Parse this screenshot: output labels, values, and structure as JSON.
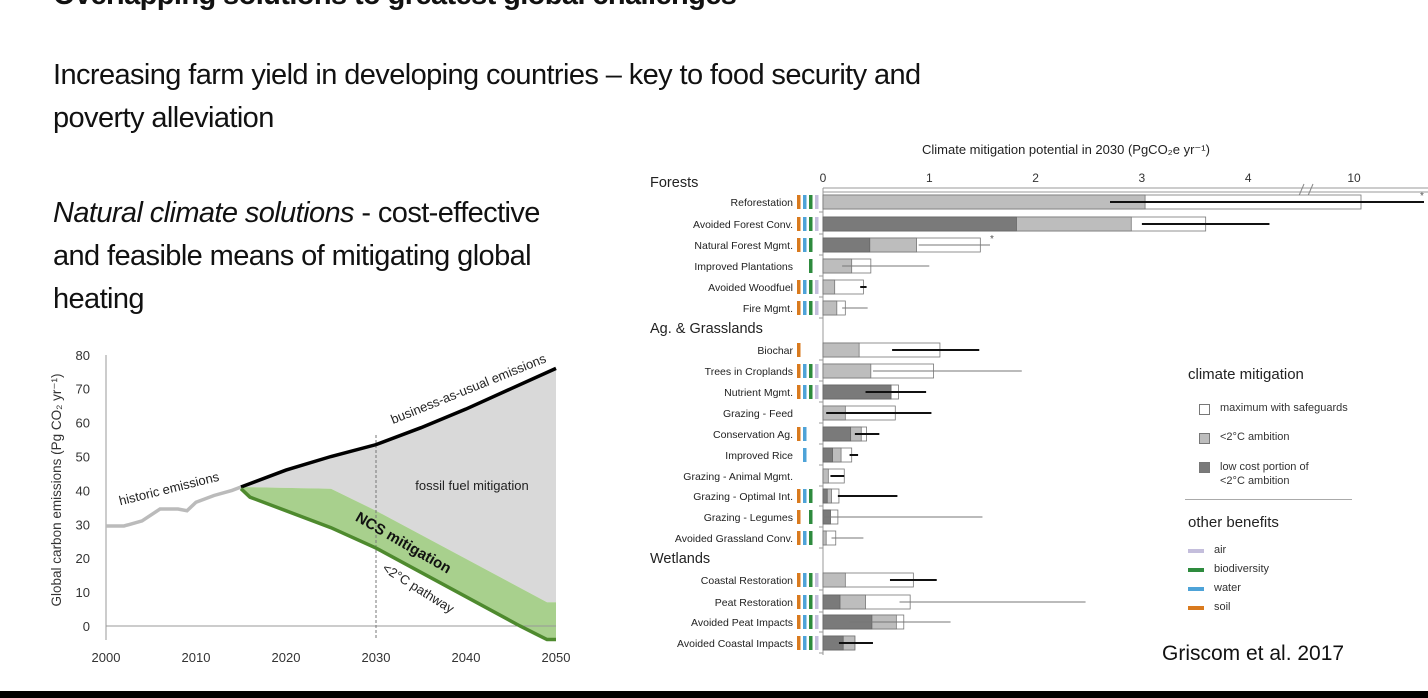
{
  "slide": {
    "title": "Overlapping solutions to greatest global challenges",
    "intro": "Increasing farm yield in developing countries – key to food security and poverty alleviation",
    "ncs_italic": "Natural climate solutions",
    "ncs_rest": " - cost-effective and feasible means of mitigating global heating",
    "citation": "Griscom et al. 2017"
  },
  "legend": {
    "mitigation_title": "climate mitigation",
    "mitigation_items": [
      {
        "label": "maximum with safeguards",
        "color": "#ffffff"
      },
      {
        "label": "<2°C ambition",
        "color": "#bdbdbd"
      },
      {
        "label": "low cost portion of <2°C ambition",
        "color": "#7a7a7a"
      }
    ],
    "benefits_title": "other benefits",
    "benefit_items": [
      {
        "label": "air",
        "color": "#c4bedc"
      },
      {
        "label": "biodiversity",
        "color": "#2e8b3e"
      },
      {
        "label": "water",
        "color": "#4ea3d8"
      },
      {
        "label": "soil",
        "color": "#d97a1e"
      }
    ]
  },
  "chart_data": [
    {
      "type": "area",
      "xlabel": "",
      "ylabel": "Global carbon emissions (Pg CO₂ yr⁻¹)",
      "xlim": [
        2000,
        2050
      ],
      "ylim": [
        -5,
        80
      ],
      "x_ticks": [
        2000,
        2010,
        2020,
        2030,
        2040,
        2050
      ],
      "y_ticks": [
        0,
        10,
        20,
        30,
        40,
        50,
        60,
        70,
        80
      ],
      "series": [
        {
          "name": "historic emissions",
          "color": "#bbbbbb",
          "points": [
            [
              2000,
              29.5
            ],
            [
              2002,
              29.5
            ],
            [
              2004,
              31
            ],
            [
              2006,
              34.5
            ],
            [
              2008,
              34.5
            ],
            [
              2009,
              34
            ],
            [
              2010,
              36.5
            ],
            [
              2012,
              38.5
            ],
            [
              2014,
              40
            ],
            [
              2015,
              41
            ]
          ]
        },
        {
          "name": "business-as-usual emissions",
          "color": "#000000",
          "points": [
            [
              2015,
              41
            ],
            [
              2020,
              46
            ],
            [
              2025,
              50
            ],
            [
              2030,
              53.5
            ],
            [
              2035,
              58.5
            ],
            [
              2040,
              64
            ],
            [
              2045,
              70
            ],
            [
              2050,
              76
            ]
          ]
        },
        {
          "name": "NCS mitigation",
          "color": "#a8d08d",
          "upper": [
            [
              2015,
              41
            ],
            [
              2025,
              40.5
            ],
            [
              2030,
              34
            ],
            [
              2049,
              7
            ],
            [
              2050,
              7
            ]
          ]
        },
        {
          "name": "<2°C pathway",
          "color": "#4e8a2e",
          "points": [
            [
              2015,
              40.5
            ],
            [
              2016,
              38
            ],
            [
              2025,
              29
            ],
            [
              2030,
              23
            ],
            [
              2046,
              0
            ],
            [
              2049,
              -4
            ],
            [
              2050,
              -4
            ]
          ]
        }
      ],
      "area_labels": {
        "fossil": "fossil fuel mitigation",
        "ncs": "NCS mitigation",
        "pathway": "<2°C pathway",
        "historic": "historic emissions",
        "bau": "business-as-usual emissions"
      },
      "fossil_area_color": "#d9d9d9",
      "reference_line_x": 2030
    },
    {
      "type": "bar",
      "title": "Climate mitigation potential in 2030 (PgCO₂e yr⁻¹)",
      "x_ticks": [
        0,
        1,
        2,
        3,
        4,
        10
      ],
      "axis_break": [
        4.5,
        9.5
      ],
      "colors": {
        "max": "#ffffff",
        "ambition": "#bdbdbd",
        "lowcost": "#7a7a7a",
        "soil": "#d97a1e",
        "water": "#4ea3d8",
        "biodiversity": "#2e8b3e",
        "air": "#c4bedc"
      },
      "groups": [
        "Forests",
        "Ag. & Grasslands",
        "Wetlands"
      ],
      "rows": [
        {
          "group": 0,
          "label": "Reforestation",
          "lowcost": 0,
          "ambition": 3.03,
          "max": 10.1,
          "err": [
            2.7,
            11
          ],
          "err_bold": true,
          "asterisk": true,
          "benefits": [
            "soil",
            "water",
            "biodiversity",
            "air"
          ]
        },
        {
          "group": 0,
          "label": "Avoided Forest Conv.",
          "lowcost": 1.82,
          "ambition": 2.9,
          "max": 3.6,
          "err": [
            3.0,
            4.2
          ],
          "err_bold": true,
          "benefits": [
            "soil",
            "water",
            "biodiversity",
            "air"
          ]
        },
        {
          "group": 0,
          "label": "Natural Forest Mgmt.",
          "lowcost": 0.44,
          "ambition": 0.88,
          "max": 1.48,
          "err": [
            0.9,
            4.8
          ],
          "err_bold": false,
          "asterisk": true,
          "benefits": [
            "soil",
            "water",
            "biodiversity"
          ]
        },
        {
          "group": 0,
          "label": "Improved Plantations",
          "lowcost": 0,
          "ambition": 0.27,
          "max": 0.45,
          "err": [
            0.18,
            1.0
          ],
          "err_bold": false,
          "benefits": [
            "biodiversity"
          ]
        },
        {
          "group": 0,
          "label": "Avoided Woodfuel",
          "lowcost": 0,
          "ambition": 0.11,
          "max": 0.38,
          "err": [
            0.35,
            0.41
          ],
          "err_bold": true,
          "benefits": [
            "soil",
            "water",
            "biodiversity",
            "air"
          ]
        },
        {
          "group": 0,
          "label": "Fire Mgmt.",
          "lowcost": 0,
          "ambition": 0.13,
          "max": 0.21,
          "err": [
            0.18,
            0.42
          ],
          "err_bold": false,
          "benefits": [
            "soil",
            "water",
            "biodiversity",
            "air"
          ]
        },
        {
          "group": 1,
          "label": "Biochar",
          "lowcost": 0,
          "ambition": 0.34,
          "max": 1.1,
          "err": [
            0.65,
            1.47
          ],
          "err_bold": true,
          "benefits": [
            "soil"
          ]
        },
        {
          "group": 1,
          "label": "Trees in Croplands",
          "lowcost": 0,
          "ambition": 0.45,
          "max": 1.04,
          "err": [
            0.47,
            1.87
          ],
          "err_bold": false,
          "benefits": [
            "soil",
            "water",
            "biodiversity",
            "air"
          ]
        },
        {
          "group": 1,
          "label": "Nutrient Mgmt.",
          "lowcost": 0.64,
          "ambition": 0.64,
          "max": 0.71,
          "err": [
            0.4,
            0.97
          ],
          "err_bold": true,
          "benefits": [
            "soil",
            "water",
            "biodiversity",
            "air"
          ]
        },
        {
          "group": 1,
          "label": "Grazing - Feed",
          "lowcost": 0,
          "ambition": 0.21,
          "max": 0.68,
          "err": [
            0.03,
            1.02
          ],
          "err_bold": true,
          "benefits": []
        },
        {
          "group": 1,
          "label": "Conservation Ag.",
          "lowcost": 0.26,
          "ambition": 0.36,
          "max": 0.41,
          "err": [
            0.3,
            0.53
          ],
          "err_bold": true,
          "benefits": [
            "soil",
            "water"
          ]
        },
        {
          "group": 1,
          "label": "Improved Rice",
          "lowcost": 0.09,
          "ambition": 0.17,
          "max": 0.27,
          "err": [
            0.25,
            0.33
          ],
          "err_bold": true,
          "benefits": [
            "water"
          ]
        },
        {
          "group": 1,
          "label": "Grazing - Animal Mgmt.",
          "lowcost": 0,
          "ambition": 0.05,
          "max": 0.2,
          "err": [
            0.07,
            0.2
          ],
          "err_bold": true,
          "benefits": []
        },
        {
          "group": 1,
          "label": "Grazing - Optimal Int.",
          "lowcost": 0.04,
          "ambition": 0.08,
          "max": 0.15,
          "err": [
            0.14,
            0.7
          ],
          "err_bold": true,
          "benefits": [
            "soil",
            "water",
            "biodiversity"
          ]
        },
        {
          "group": 1,
          "label": "Grazing - Legumes",
          "lowcost": 0.07,
          "ambition": 0.07,
          "max": 0.14,
          "err": [
            0,
            1.5
          ],
          "err_bold": false,
          "benefits": [
            "soil",
            "biodiversity"
          ]
        },
        {
          "group": 1,
          "label": "Avoided Grassland Conv.",
          "lowcost": 0,
          "ambition": 0.03,
          "max": 0.12,
          "err": [
            0.08,
            0.38
          ],
          "err_bold": false,
          "benefits": [
            "soil",
            "water",
            "biodiversity"
          ]
        },
        {
          "group": 2,
          "label": "Coastal Restoration",
          "lowcost": 0,
          "ambition": 0.21,
          "max": 0.85,
          "err": [
            0.63,
            1.07
          ],
          "err_bold": true,
          "benefits": [
            "soil",
            "water",
            "biodiversity",
            "air"
          ]
        },
        {
          "group": 2,
          "label": "Peat Restoration",
          "lowcost": 0.16,
          "ambition": 0.4,
          "max": 0.82,
          "err": [
            0.72,
            2.47
          ],
          "err_bold": false,
          "benefits": [
            "soil",
            "water",
            "biodiversity",
            "air"
          ]
        },
        {
          "group": 2,
          "label": "Avoided Peat Impacts",
          "lowcost": 0.46,
          "ambition": 0.69,
          "max": 0.76,
          "err": [
            0.25,
            1.2
          ],
          "err_bold": false,
          "benefits": [
            "soil",
            "water",
            "biodiversity",
            "air"
          ]
        },
        {
          "group": 2,
          "label": "Avoided Coastal Impacts",
          "lowcost": 0.19,
          "ambition": 0.3,
          "max": 0.3,
          "err": [
            0.15,
            0.47
          ],
          "err_bold": true,
          "benefits": [
            "soil",
            "water",
            "biodiversity",
            "air"
          ]
        }
      ]
    }
  ]
}
